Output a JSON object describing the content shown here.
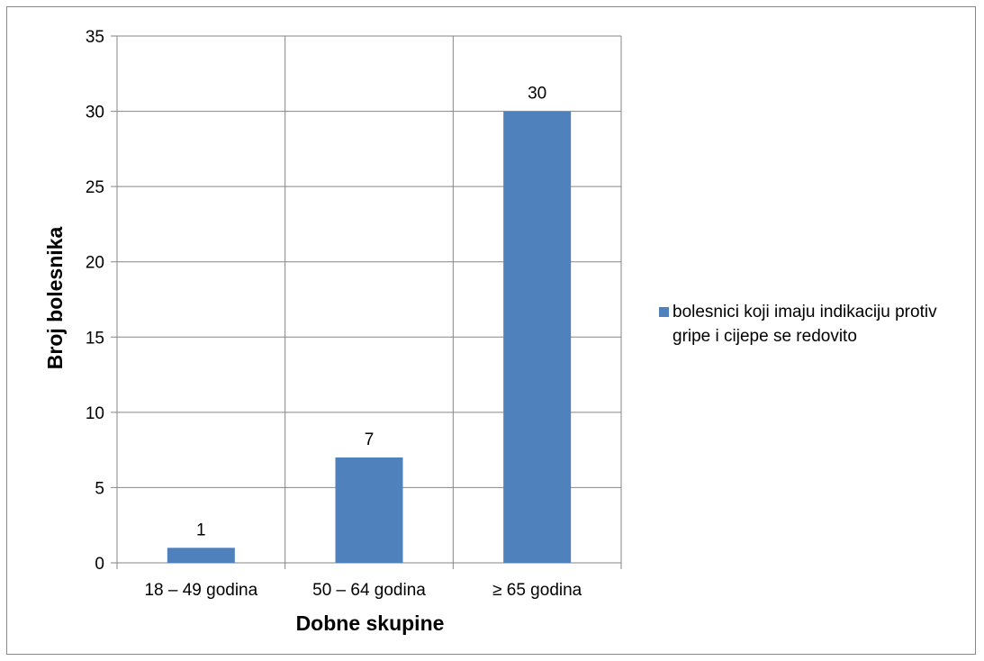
{
  "chart_data": {
    "type": "bar",
    "categories": [
      "18 – 49 godina",
      "50 – 64 godina",
      "≥ 65 godina"
    ],
    "series": [
      {
        "name": "bolesnici koji imaju indikaciju protiv gripe i cijepe se redovito",
        "values": [
          1,
          7,
          30
        ],
        "color": "#4f81bd"
      }
    ],
    "data_labels": [
      "1",
      "7",
      "30"
    ],
    "xlabel": "Dobne skupine",
    "ylabel": "Broj bolesnika",
    "ylim": [
      0,
      35
    ],
    "yticks": [
      0,
      5,
      10,
      15,
      20,
      25,
      30,
      35
    ],
    "ytick_labels": [
      "0",
      "5",
      "10",
      "15",
      "20",
      "25",
      "30",
      "35"
    ],
    "grid": true,
    "legend_position": "right"
  }
}
